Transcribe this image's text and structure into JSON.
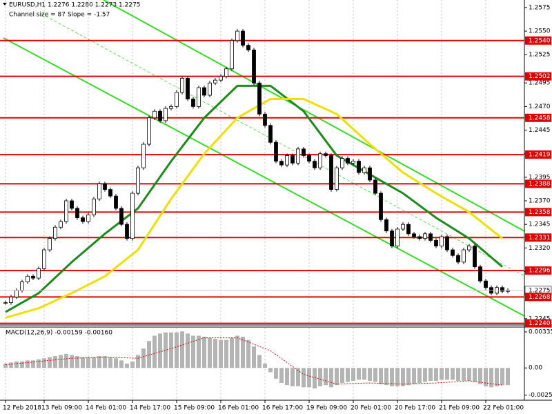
{
  "chart_data": [
    {
      "type": "candlestick",
      "title": "EURUSD,H1  1.2276 1.2280 1.2273 1.2275",
      "subtitle": "Channel size = 87 Slope = -1.57",
      "categories": [
        "12 Feb 2018",
        null,
        null,
        null,
        null,
        null,
        null,
        "13 Feb 09:00",
        null,
        null,
        null,
        null,
        null,
        null,
        null,
        "14 Feb 01:00",
        null,
        null,
        null,
        null,
        null,
        null,
        null,
        "14 Feb 17:00",
        null,
        null,
        null,
        null,
        null,
        null,
        null,
        "15 Feb 09:00",
        null,
        null,
        null,
        null,
        null,
        null,
        null,
        "16 Feb 01:00",
        null,
        null,
        null,
        null,
        null,
        null,
        null,
        "16 Feb 17:00",
        null,
        null,
        null,
        null,
        null,
        null,
        null,
        "19 Feb 09:00",
        null,
        null,
        null,
        null,
        null,
        null,
        null,
        "20 Feb 01:00",
        null,
        null,
        null,
        null,
        null,
        null,
        null,
        "20 Feb 17:00",
        null,
        null,
        null,
        null,
        null,
        null,
        null,
        "21 Feb 09:00",
        null,
        null,
        null,
        null,
        null,
        null,
        null,
        "22 Feb 01:00",
        null,
        null,
        null,
        null
      ],
      "close": [
        1.2262,
        1.2268,
        1.2275,
        1.2284,
        1.229,
        1.2288,
        1.2298,
        1.2318,
        1.233,
        1.2342,
        1.2348,
        1.237,
        1.2362,
        1.2352,
        1.2348,
        1.2355,
        1.2372,
        1.2388,
        1.2382,
        1.2375,
        1.2362,
        1.2345,
        1.233,
        1.2378,
        1.2405,
        1.243,
        1.2458,
        1.2465,
        1.2455,
        1.2468,
        1.247,
        1.2485,
        1.25,
        1.2478,
        1.247,
        1.249,
        1.2482,
        1.2495,
        1.2498,
        1.2502,
        1.251,
        1.254,
        1.255,
        1.2535,
        1.253,
        1.2495,
        1.2462,
        1.245,
        1.2432,
        1.2412,
        1.2408,
        1.2418,
        1.241,
        1.2425,
        1.2418,
        1.2412,
        1.2405,
        1.242,
        1.2418,
        1.2382,
        1.2405,
        1.2415,
        1.241,
        1.2412,
        1.24,
        1.2405,
        1.2392,
        1.2378,
        1.235,
        1.2338,
        1.2322,
        1.234,
        1.2345,
        1.2335,
        1.2332,
        1.233,
        1.2335,
        1.2328,
        1.2322,
        1.2332,
        1.2318,
        1.2312,
        1.2305,
        1.2318,
        1.2322,
        1.23,
        1.2285,
        1.2278,
        1.2272,
        1.2278,
        1.2274,
        1.2275
      ],
      "series": [
        {
          "color": "#1a8c1a",
          "x": [
            0,
            6,
            12,
            18,
            24,
            30,
            36,
            42,
            48,
            54,
            60,
            66,
            72,
            78,
            84,
            90
          ],
          "values": [
            1.2252,
            1.2272,
            1.2305,
            1.2335,
            1.2362,
            1.2412,
            1.2458,
            1.2492,
            1.2492,
            1.2465,
            1.2418,
            1.2398,
            1.2378,
            1.2352,
            1.233,
            1.23
          ]
        },
        {
          "color": "#f0e000",
          "x": [
            0,
            6,
            12,
            18,
            24,
            30,
            36,
            42,
            48,
            54,
            60,
            66,
            72,
            78,
            84,
            90
          ],
          "values": [
            1.2246,
            1.2256,
            1.2272,
            1.229,
            1.2318,
            1.2372,
            1.242,
            1.2458,
            1.2478,
            1.2478,
            1.2462,
            1.243,
            1.24,
            1.2378,
            1.2358,
            1.233
          ]
        }
      ],
      "ylim": [
        1.2239,
        1.2583
      ],
      "yticks": [
        1.2575,
        {
          "value": 1.255,
          "label": "1.2550"
        },
        1.2525,
        1.2495,
        {
          "value": 1.247,
          "label": "1.2470"
        },
        1.2445,
        {
          "value": 1.242,
          "label": "1.2420"
        },
        1.2395,
        {
          "value": 1.237,
          "label": "1.2370"
        },
        1.2345,
        {
          "value": 1.232,
          "label": "1.2320"
        },
        1.2295,
        {
          "value": 1.227,
          "label": "1.2270"
        },
        1.2245
      ],
      "levels": {
        "color": "#e00000",
        "values": [
          1.254,
          1.2502,
          1.2458,
          1.2419,
          1.2388,
          1.2358,
          1.2331,
          1.2296,
          1.2268,
          1.224
        ],
        "value_labels": [
          "1.2540",
          "1.2502",
          "1.2458",
          "1.2419",
          "1.2388",
          "1.2358",
          "1.2331",
          "1.2296",
          "1.2268",
          "1.2240"
        ]
      },
      "last_price": 1.2275
    },
    {
      "type": "macd",
      "title": "MACD(12,26,9) -0.00159 -0.00160",
      "color": "#b4b4b4",
      "values": [
        0.0004,
        0.0005,
        0.0006,
        0.0006,
        0.0007,
        0.0007,
        0.0008,
        0.0009,
        0.001,
        0.0011,
        0.0012,
        0.0013,
        0.0012,
        0.0011,
        0.001,
        0.001,
        0.001,
        0.0011,
        0.0011,
        0.001,
        0.0009,
        0.0007,
        0.0004,
        0.0006,
        0.0012,
        0.0018,
        0.0025,
        0.003,
        0.0032,
        0.0033,
        0.0033,
        0.0033,
        0.0034,
        0.0032,
        0.003,
        0.003,
        0.0029,
        0.0028,
        0.0027,
        0.0026,
        0.0026,
        0.0028,
        0.003,
        0.0029,
        0.0026,
        0.002,
        0.0012,
        0.0004,
        -0.0004,
        -0.001,
        -0.0014,
        -0.0016,
        -0.0017,
        -0.0017,
        -0.0018,
        -0.0018,
        -0.0019,
        -0.0017,
        -0.0016,
        -0.0018,
        -0.0016,
        -0.0014,
        -0.0013,
        -0.0012,
        -0.0011,
        -0.0011,
        -0.0012,
        -0.0013,
        -0.0015,
        -0.0016,
        -0.0017,
        -0.0017,
        -0.0017,
        -0.0016,
        -0.0015,
        -0.0014,
        -0.0013,
        -0.0012,
        -0.0012,
        -0.0011,
        -0.0011,
        -0.0011,
        -0.0012,
        -0.0012,
        -0.0012,
        -0.0013,
        -0.0015,
        -0.0017,
        -0.0018,
        -0.0017,
        -0.0016,
        -0.0016
      ],
      "signal": {
        "color": "#e00000",
        "x": [
          0,
          6,
          12,
          18,
          24,
          30,
          36,
          42,
          48,
          54,
          60,
          66,
          72,
          78,
          84,
          90
        ],
        "values": [
          0.0003,
          0.0006,
          0.0009,
          0.001,
          0.0009,
          0.0018,
          0.0028,
          0.0028,
          0.0016,
          -0.0006,
          -0.0015,
          -0.0014,
          -0.0015,
          -0.0014,
          -0.0012,
          -0.0016
        ]
      },
      "ylim": [
        -0.003,
        0.0038
      ],
      "yticks": [
        0.00335,
        {
          "value": 0,
          "label": "0.00"
        },
        -0.00253
      ]
    }
  ]
}
